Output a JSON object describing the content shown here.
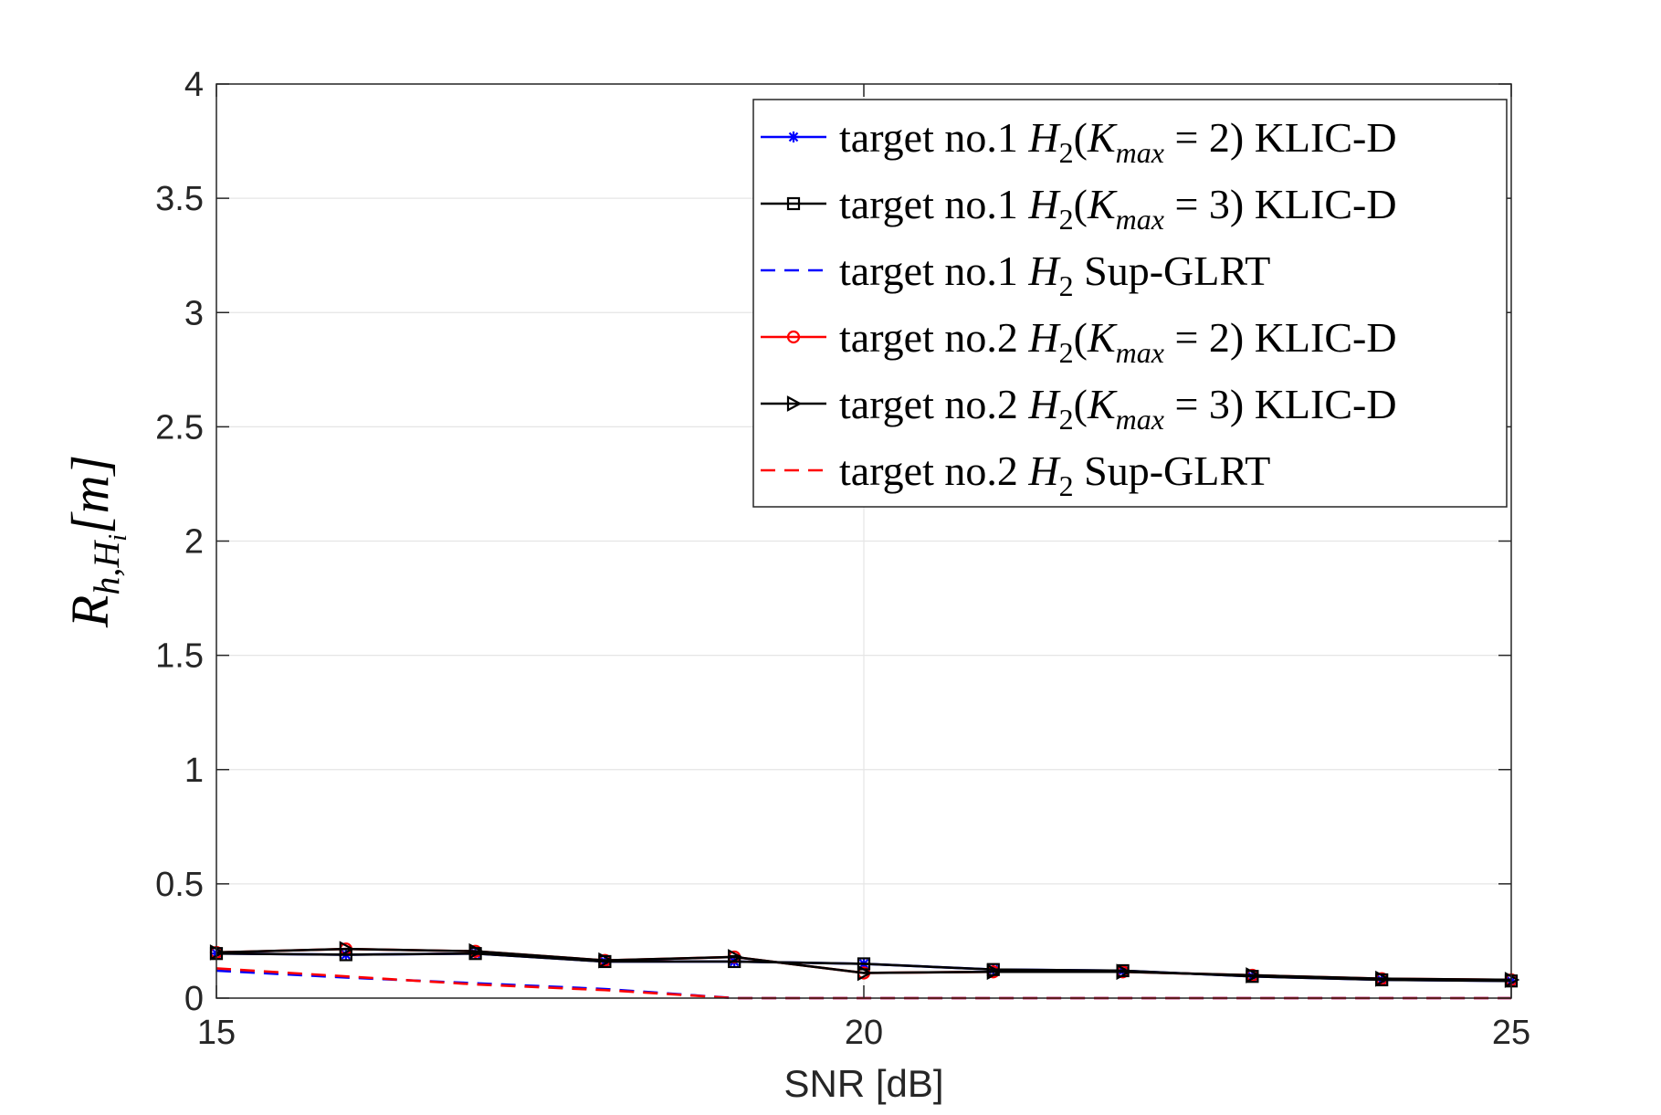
{
  "chart_data": {
    "type": "line",
    "xlabel": "SNR [dB]",
    "ylabel": {
      "base": "R",
      "sub1": "h,H",
      "sub2": "i",
      "tail": "[m]"
    },
    "xlim": [
      15,
      25
    ],
    "ylim": [
      0,
      4
    ],
    "xticks": [
      15,
      20,
      25
    ],
    "yticks": [
      0,
      0.5,
      1,
      1.5,
      2,
      2.5,
      3,
      3.5,
      4
    ],
    "ytick_labels": [
      "0",
      "0.5",
      "1",
      "1.5",
      "2",
      "2.5",
      "3",
      "3.5",
      "4"
    ],
    "grid": true,
    "legend_position": "top-right",
    "x": [
      15,
      16,
      17,
      18,
      19,
      20,
      21,
      22,
      23,
      24,
      25
    ],
    "series": [
      {
        "id": "t1k2",
        "legend": {
          "pre": "target no.1 ",
          "h": "H",
          "hsub": "2",
          "mid": "(",
          "k": "K",
          "ksub": "max",
          "post": " = 2) KLIC-D"
        },
        "color": "#0000ff",
        "dash": "solid",
        "marker": "star",
        "values": [
          0.195,
          0.19,
          0.195,
          0.16,
          0.16,
          0.15,
          0.125,
          0.12,
          0.095,
          0.08,
          0.075
        ]
      },
      {
        "id": "t1k3",
        "legend": {
          "pre": "target no.1 ",
          "h": "H",
          "hsub": "2",
          "mid": "(",
          "k": "K",
          "ksub": "max",
          "post": " = 3) KLIC-D"
        },
        "color": "#000000",
        "dash": "solid",
        "marker": "square",
        "values": [
          0.195,
          0.19,
          0.195,
          0.16,
          0.16,
          0.15,
          0.125,
          0.12,
          0.095,
          0.08,
          0.075
        ]
      },
      {
        "id": "t1sup",
        "legend": {
          "pre": "target no.1 ",
          "h": "H",
          "hsub": "2",
          "mid": "",
          "k": "",
          "ksub": "",
          "post": " Sup-GLRT"
        },
        "color": "#0000ff",
        "dash": "dashed",
        "marker": "none",
        "values": [
          0.12,
          0.09,
          0.065,
          0.04,
          0.0,
          0.0,
          0.0,
          0.0,
          0.0,
          0.0,
          0.0
        ]
      },
      {
        "id": "t2k2",
        "legend": {
          "pre": "target no.2 ",
          "h": "H",
          "hsub": "2",
          "mid": "(",
          "k": "K",
          "ksub": "max",
          "post": " = 2) KLIC-D"
        },
        "color": "#ff0000",
        "dash": "solid",
        "marker": "circle",
        "values": [
          0.2,
          0.215,
          0.205,
          0.165,
          0.18,
          0.11,
          0.115,
          0.115,
          0.1,
          0.085,
          0.08
        ]
      },
      {
        "id": "t2k3",
        "legend": {
          "pre": "target no.2 ",
          "h": "H",
          "hsub": "2",
          "mid": "(",
          "k": "K",
          "ksub": "max",
          "post": " = 3) KLIC-D"
        },
        "color": "#000000",
        "dash": "solid",
        "marker": "triangle-right",
        "values": [
          0.2,
          0.215,
          0.205,
          0.165,
          0.18,
          0.11,
          0.115,
          0.115,
          0.1,
          0.085,
          0.08
        ]
      },
      {
        "id": "t2sup",
        "legend": {
          "pre": "target no.2 ",
          "h": "H",
          "hsub": "2",
          "mid": "",
          "k": "",
          "ksub": "",
          "post": " Sup-GLRT"
        },
        "color": "#ff0000",
        "dash": "dashed",
        "marker": "none",
        "values": [
          0.13,
          0.095,
          0.06,
          0.035,
          0.0,
          0.0,
          0.0,
          0.0,
          0.0,
          0.0,
          0.0
        ]
      }
    ]
  }
}
